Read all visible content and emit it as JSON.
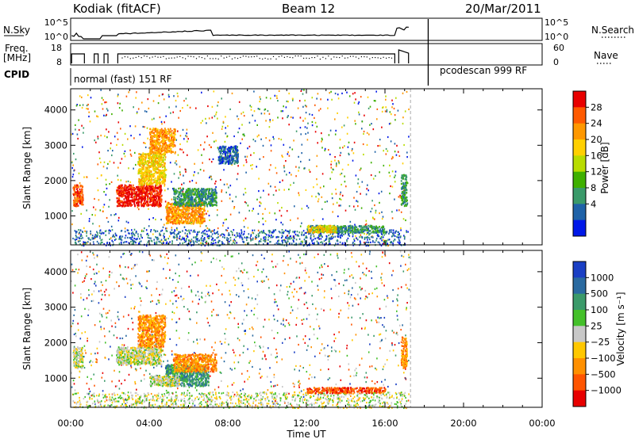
{
  "header": {
    "station": "Kodiak (fitACF)",
    "beam": "Beam 12",
    "date": "20/Mar/2011"
  },
  "status_panels": {
    "nsky_label": "N.Sky",
    "nsky_ticks": [
      "10^5",
      "10^0"
    ],
    "nsearch_label": "N.Search",
    "nsearch_ticks": [
      "10^5",
      "10^0"
    ],
    "freq_label": "Freq.",
    "freq_unit": "[MHz]",
    "freq_ticks": [
      "18",
      "8"
    ],
    "nave_label": "Nave",
    "nave_ticks": [
      "60",
      "0"
    ],
    "cpid_label": "CPID",
    "mode_1": "normal (fast) 151 RF",
    "mode_2": "pcodescan 999 RF",
    "mode_change_hour": 18.2
  },
  "chart_data": [
    {
      "type": "heatmap",
      "panel": "power",
      "ylabel": "Slant Range [km]",
      "yticks": [
        1000,
        2000,
        3000,
        4000
      ],
      "ylim": [
        180,
        4600
      ],
      "xlim": [
        0,
        24
      ],
      "colorbar": {
        "label": "Power [dB]",
        "ticks": [
          "28",
          "24",
          "20",
          "16",
          "12",
          "8",
          "4"
        ],
        "colors": [
          "#e80000",
          "#ff5a00",
          "#ff9800",
          "#ffd000",
          "#b8dc00",
          "#3fb000",
          "#3a9a6a",
          "#1f62a8",
          "#0018e8"
        ]
      },
      "regions": [
        {
          "t": [
            0.1,
            0.6
          ],
          "r": [
            1300,
            1900
          ],
          "level": 1
        },
        {
          "t": [
            2.3,
            4.6
          ],
          "r": [
            1300,
            1900
          ],
          "level": 0
        },
        {
          "t": [
            3.4,
            4.8
          ],
          "r": [
            1900,
            2800
          ],
          "level": 3
        },
        {
          "t": [
            4.0,
            5.3
          ],
          "r": [
            2800,
            3500
          ],
          "level": 2
        },
        {
          "t": [
            4.8,
            6.8
          ],
          "r": [
            800,
            1400
          ],
          "level": 2
        },
        {
          "t": [
            5.2,
            7.4
          ],
          "r": [
            1300,
            1800
          ],
          "level": 6
        },
        {
          "t": [
            12.0,
            16.0
          ],
          "r": [
            550,
            750
          ],
          "level": 6
        },
        {
          "t": [
            12.0,
            13.5
          ],
          "r": [
            550,
            750
          ],
          "level": 3
        },
        {
          "t": [
            16.8,
            17.1
          ],
          "r": [
            1300,
            2200
          ],
          "level": 6
        },
        {
          "t": [
            7.5,
            8.5
          ],
          "r": [
            2500,
            3000
          ],
          "level": 7
        }
      ]
    },
    {
      "type": "heatmap",
      "panel": "velocity",
      "ylabel": "Slant Range [km]",
      "xlabel": "Time UT",
      "yticks": [
        1000,
        2000,
        3000,
        4000
      ],
      "xticks": [
        "00:00",
        "04:00",
        "08:00",
        "12:00",
        "16:00",
        "20:00",
        "00:00"
      ],
      "ylim": [
        180,
        4600
      ],
      "xlim": [
        0,
        24
      ],
      "colorbar": {
        "label": "Velocity [m s⁻¹]",
        "ticks": [
          "1000",
          "500",
          "100",
          "25",
          "−25",
          "−100",
          "−500",
          "−1000"
        ],
        "colors": [
          "#1a3fc4",
          "#2a6aa0",
          "#3b9a6a",
          "#44c02a",
          "#c8c8c8",
          "#ffc800",
          "#ff9000",
          "#ff5500",
          "#e80000"
        ]
      },
      "regions": [
        {
          "t": [
            0.1,
            0.6
          ],
          "r": [
            1300,
            1900
          ],
          "level": 4
        },
        {
          "t": [
            2.3,
            4.6
          ],
          "r": [
            1400,
            1900
          ],
          "level": 4
        },
        {
          "t": [
            3.4,
            4.8
          ],
          "r": [
            1900,
            2800
          ],
          "level": 6
        },
        {
          "t": [
            4.8,
            7.0
          ],
          "r": [
            800,
            1400
          ],
          "level": 2
        },
        {
          "t": [
            5.2,
            7.4
          ],
          "r": [
            1200,
            1700
          ],
          "level": 6
        },
        {
          "t": [
            4.0,
            5.5
          ],
          "r": [
            800,
            1100
          ],
          "level": 4
        },
        {
          "t": [
            12.0,
            16.0
          ],
          "r": [
            600,
            760
          ],
          "level": 7
        },
        {
          "t": [
            16.8,
            17.1
          ],
          "r": [
            1300,
            2200
          ],
          "level": 6
        }
      ]
    }
  ]
}
